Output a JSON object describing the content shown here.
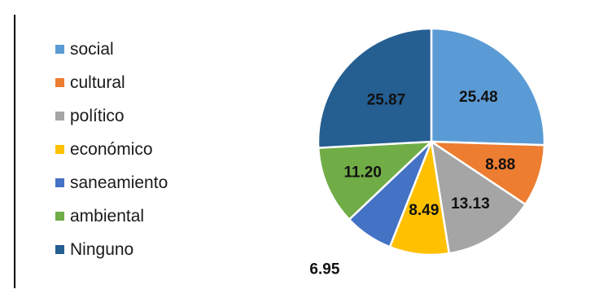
{
  "chart_data": {
    "type": "pie",
    "categories": [
      "social",
      "cultural",
      "político",
      "económico",
      "saneamiento",
      "ambiental",
      "Ninguno"
    ],
    "values": [
      25.48,
      8.88,
      13.13,
      8.49,
      6.95,
      11.2,
      25.87
    ],
    "labels": [
      "25.48",
      "8.88",
      "13.13",
      "8.49",
      "6.95",
      "11.20",
      "25.87"
    ],
    "colors": [
      "#5B9BD5",
      "#ED7D31",
      "#A5A5A5",
      "#FFC000",
      "#4472C4",
      "#70AD47",
      "#255E91"
    ],
    "legend_position": "left",
    "start_angle": "12 o'clock, clockwise"
  }
}
